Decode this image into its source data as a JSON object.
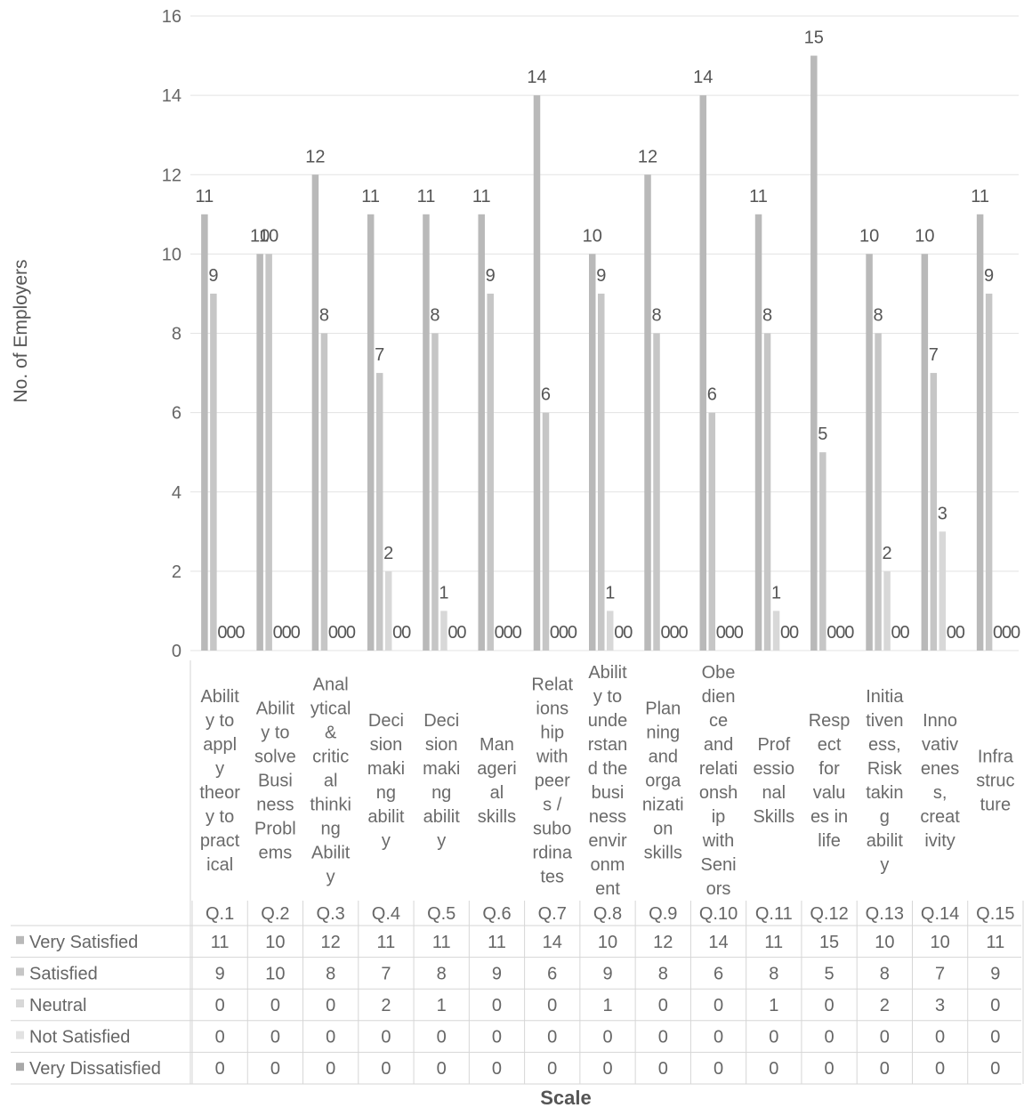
{
  "chart_data": {
    "type": "bar",
    "ylabel": "No. of Employers",
    "xlabel": "Scale",
    "ylim": [
      0,
      16
    ],
    "yticks": [
      0,
      2,
      4,
      6,
      8,
      10,
      12,
      14,
      16
    ],
    "grid": true,
    "legend": "table-left",
    "colors": {
      "very_satisfied": "#b9b9b9",
      "satisfied": "#c6c6c6",
      "neutral": "#d8d8d8",
      "not_satisfied": "#e2e2e2",
      "very_dissatisfied": "#a9a9a9"
    },
    "categories": [
      "Q.1",
      "Q.2",
      "Q.3",
      "Q.4",
      "Q.5",
      "Q.6",
      "Q.7",
      "Q.8",
      "Q.9",
      "Q.10",
      "Q.11",
      "Q.12",
      "Q.13",
      "Q.14",
      "Q.15"
    ],
    "category_labels": [
      [
        "Abilit",
        "y to",
        "appl",
        "y",
        "theor",
        "y to",
        "pract",
        "ical"
      ],
      [
        "Abilit",
        "y to",
        "solve",
        "Busi",
        "ness",
        "Probl",
        "ems"
      ],
      [
        "Anal",
        "ytical",
        "&",
        "critic",
        "al",
        "thinki",
        "ng",
        "Abilit",
        "y"
      ],
      [
        "Deci",
        "sion",
        "maki",
        "ng",
        "abilit",
        "y"
      ],
      [
        "Deci",
        "sion",
        "maki",
        "ng",
        "abilit",
        "y"
      ],
      [
        "Man",
        "ageri",
        "al",
        "skills"
      ],
      [
        "Relat",
        "ions",
        "hip",
        "with",
        "peer",
        "s /",
        "subo",
        "rdina",
        "tes"
      ],
      [
        "Abilit",
        "y to",
        "unde",
        "rstan",
        "d the",
        "busi",
        "ness",
        "envir",
        "onm",
        "ent"
      ],
      [
        "Plan",
        "ning",
        "and",
        "orga",
        "nizati",
        "on",
        "skills"
      ],
      [
        "Obe",
        "dien",
        "ce",
        "and",
        "relati",
        "onsh",
        "ip",
        "with",
        "Seni",
        "ors"
      ],
      [
        "Prof",
        "essio",
        "nal",
        "Skills"
      ],
      [
        "Resp",
        "ect",
        "for",
        "valu",
        "es in",
        "life"
      ],
      [
        "Initia",
        "tiven",
        "ess,",
        "Risk",
        "takin",
        "g",
        "abilit",
        "y"
      ],
      [
        "Inno",
        "vativ",
        "enes",
        "s,",
        "creat",
        "ivity"
      ],
      [
        "Infra",
        "struc",
        "ture"
      ]
    ],
    "series": [
      {
        "name": "Very Satisfied",
        "values": [
          11,
          10,
          12,
          11,
          11,
          11,
          14,
          10,
          12,
          14,
          11,
          15,
          10,
          10,
          11
        ]
      },
      {
        "name": "Satisfied",
        "values": [
          9,
          10,
          8,
          7,
          8,
          9,
          6,
          9,
          8,
          6,
          8,
          5,
          8,
          7,
          9
        ]
      },
      {
        "name": "Neutral",
        "values": [
          0,
          0,
          0,
          2,
          1,
          0,
          0,
          1,
          0,
          0,
          1,
          0,
          2,
          3,
          0
        ]
      },
      {
        "name": "Not Satisfied",
        "values": [
          0,
          0,
          0,
          0,
          0,
          0,
          0,
          0,
          0,
          0,
          0,
          0,
          0,
          0,
          0
        ]
      },
      {
        "name": "Very Dissatisfied",
        "values": [
          0,
          0,
          0,
          0,
          0,
          0,
          0,
          0,
          0,
          0,
          0,
          0,
          0,
          0,
          0
        ]
      }
    ]
  }
}
